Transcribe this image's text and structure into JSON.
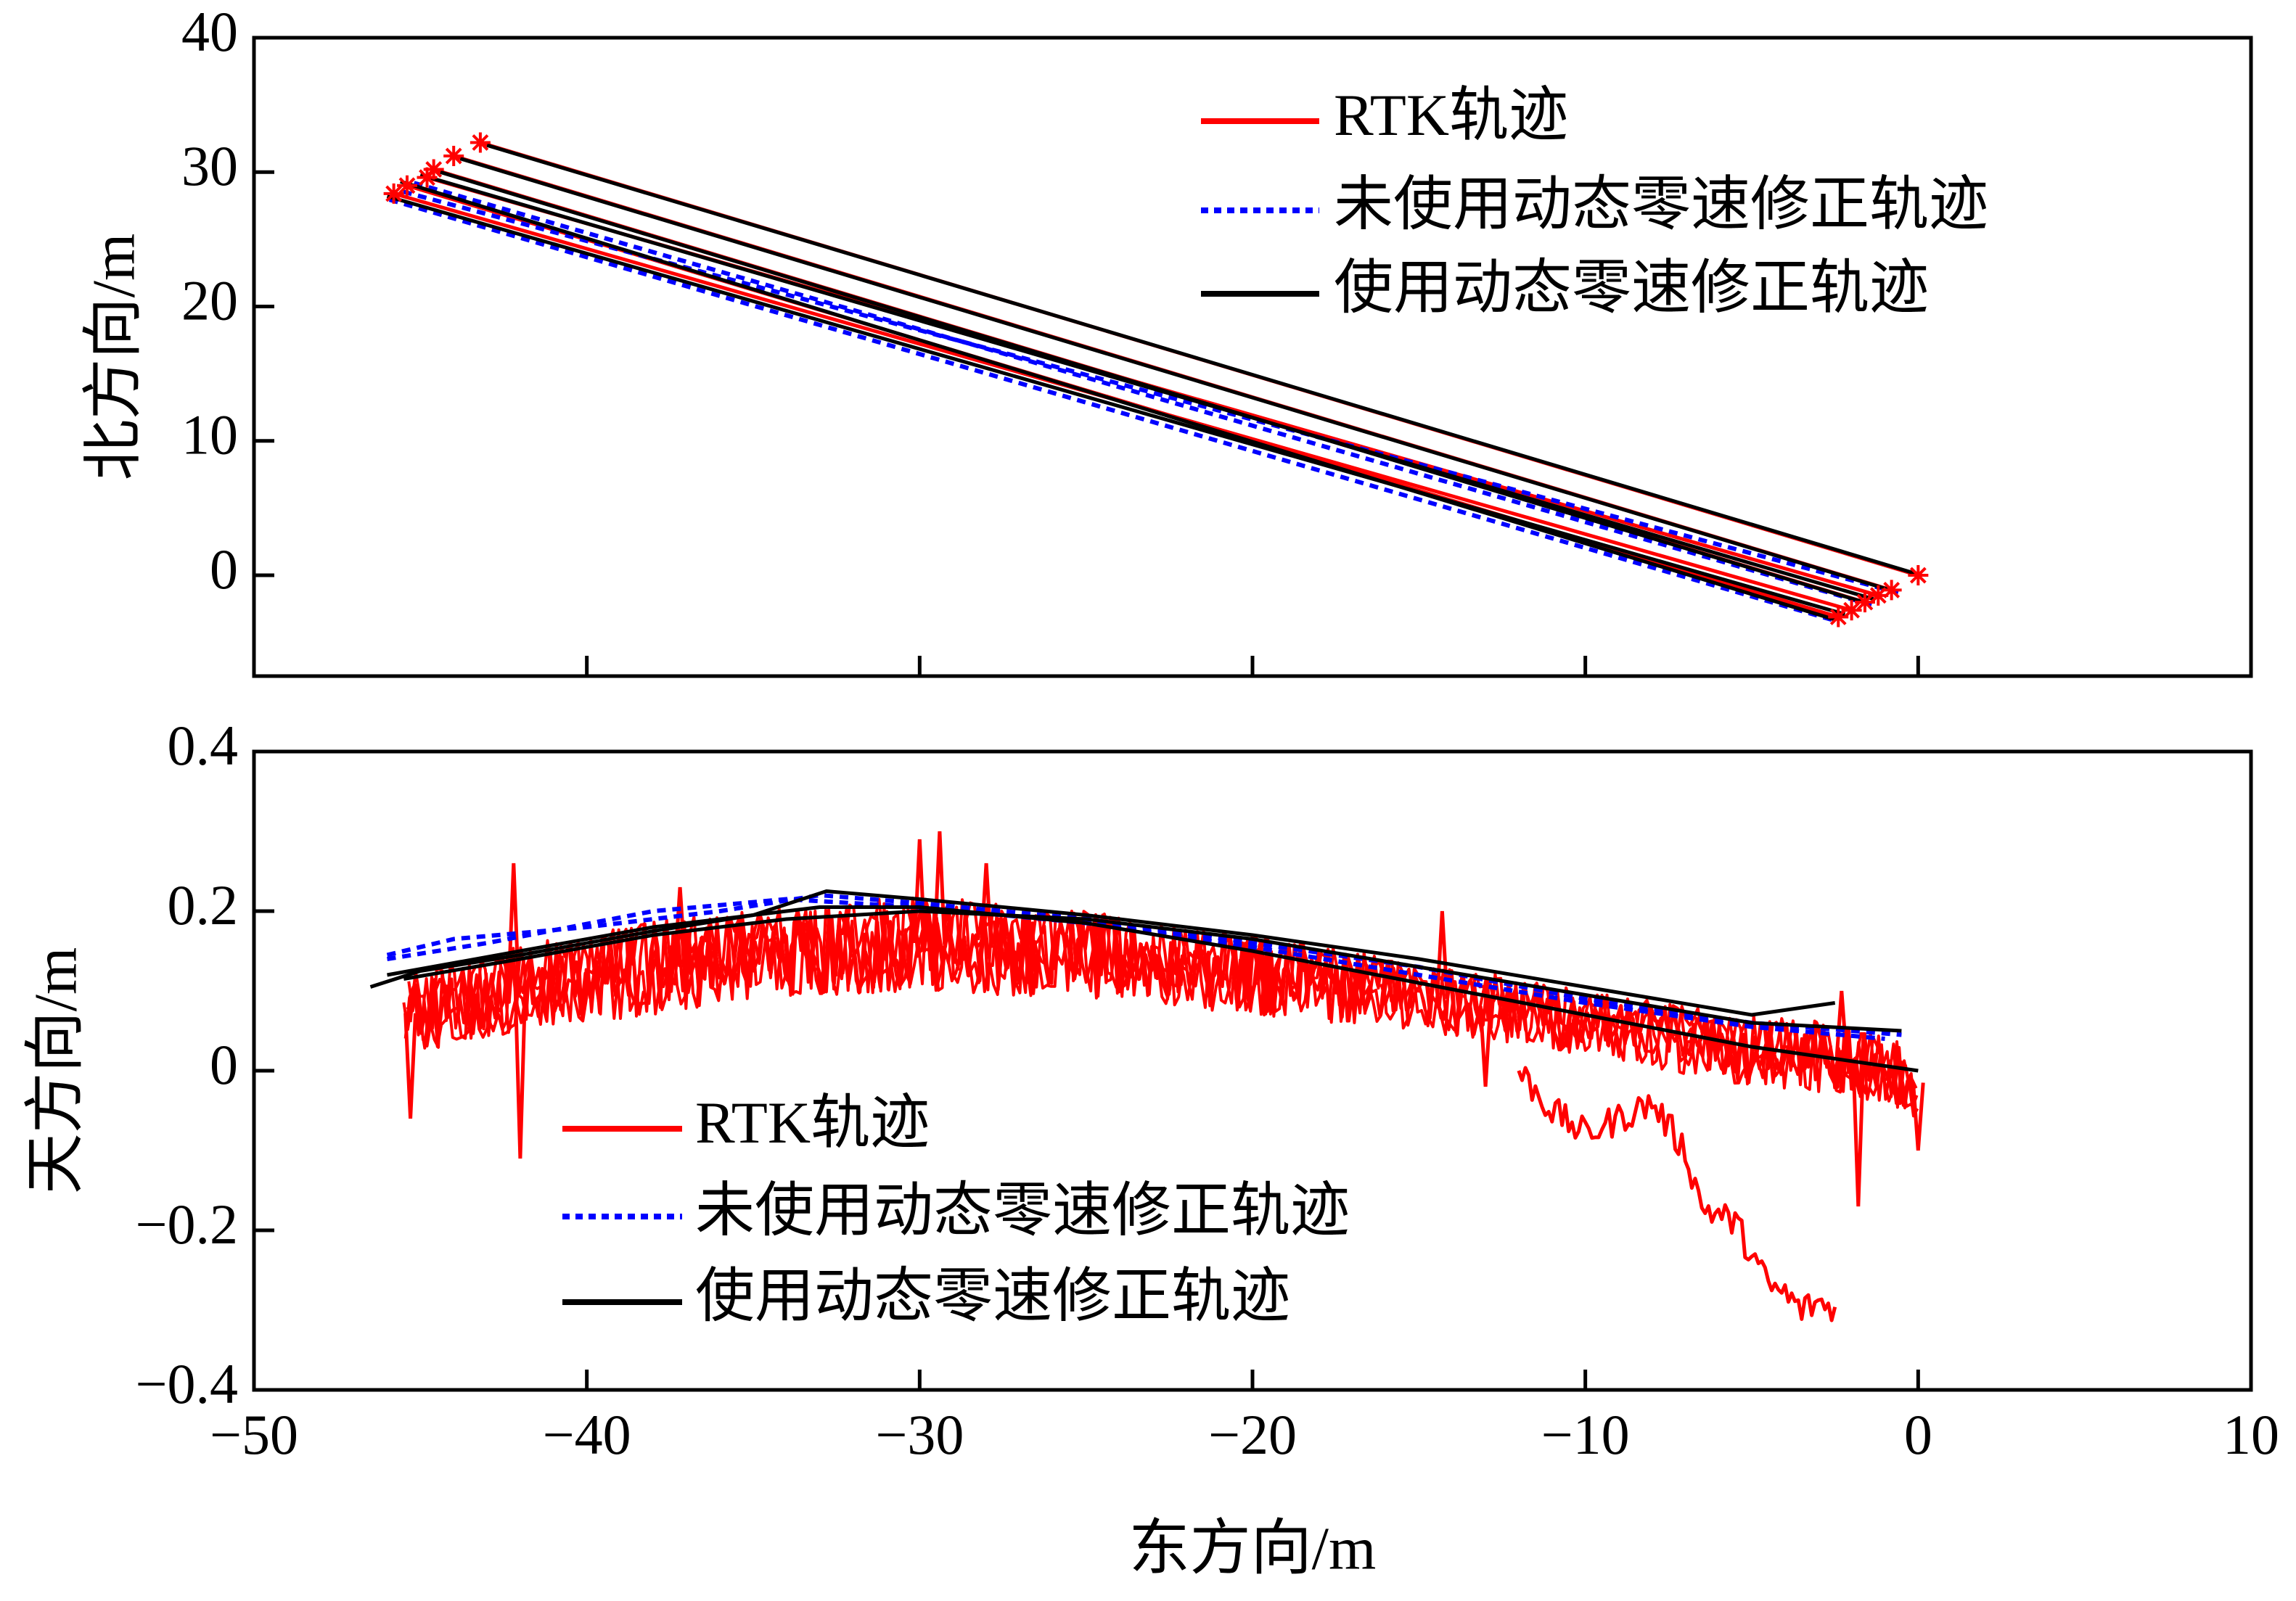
{
  "chart_data": [
    {
      "type": "line",
      "panel": "top",
      "xlabel": "东方向/m",
      "ylabel": "北方向/m",
      "xlim": [
        -50,
        10
      ],
      "ylim": [
        -7.5,
        40
      ],
      "yticks": [
        0,
        10,
        20,
        30,
        40
      ],
      "ytick_labels": [
        "0",
        "10",
        "20",
        "30",
        "40"
      ],
      "legend_position": "top-right",
      "legend": [
        "RTK轨迹",
        "未使用动态零速修正轨迹",
        "使用动态零速修正轨迹"
      ],
      "series": [
        {
          "name": "RTK轨迹",
          "color": "#ff0000",
          "style": "solid",
          "passes": [
            [
              [
                0,
                0
              ],
              [
                -43.2,
                32.2
              ]
            ],
            [
              [
                -0.8,
                -1.1
              ],
              [
                -44.0,
                31.2
              ]
            ],
            [
              [
                -1.6,
                -2.0
              ],
              [
                -44.6,
                30.2
              ]
            ],
            [
              [
                -2.4,
                -3.1
              ],
              [
                -45.4,
                29.0
              ]
            ],
            [
              [
                -1.2,
                -1.5
              ],
              [
                -44.8,
                29.6
              ]
            ],
            [
              [
                -2.0,
                -2.6
              ],
              [
                -45.8,
                28.4
              ]
            ]
          ]
        },
        {
          "name": "未使用动态零速修正轨迹",
          "color": "#0000ff",
          "style": "dotted",
          "passes": [
            [
              [
                -0.6,
                -1.3
              ],
              [
                -45.6,
                28.6
              ]
            ],
            [
              [
                -2.6,
                -3.3
              ],
              [
                -46.0,
                28.0
              ]
            ],
            [
              [
                -1.4,
                -2.2
              ],
              [
                -45.2,
                29.2
              ]
            ]
          ]
        },
        {
          "name": "使用动态零速修正轨迹",
          "color": "#000000",
          "style": "solid",
          "passes": [
            [
              [
                0.1,
                0.0
              ],
              [
                -43.0,
                32.0
              ]
            ],
            [
              [
                -0.7,
                -1.2
              ],
              [
                -43.8,
                31.0
              ]
            ],
            [
              [
                -1.5,
                -2.1
              ],
              [
                -44.4,
                30.0
              ]
            ],
            [
              [
                -2.5,
                -3.3
              ],
              [
                -45.6,
                29.3
              ]
            ],
            [
              [
                -1.3,
                -1.8
              ],
              [
                -45.0,
                29.8
              ]
            ],
            [
              [
                -2.2,
                -2.9
              ],
              [
                -46.0,
                28.2
              ]
            ]
          ]
        }
      ]
    },
    {
      "type": "line",
      "panel": "bottom",
      "xlabel": "东方向/m",
      "ylabel": "天方向/m",
      "xlim": [
        -50,
        10
      ],
      "ylim": [
        -0.4,
        0.4
      ],
      "xticks": [
        -50,
        -40,
        -30,
        -20,
        -10,
        0,
        10
      ],
      "xtick_labels": [
        "−50",
        "−40",
        "−30",
        "−20",
        "−10",
        "0",
        "10"
      ],
      "yticks": [
        -0.4,
        -0.2,
        0,
        0.2,
        0.4
      ],
      "ytick_labels": [
        "−0.4",
        "−0.2",
        "0",
        "0.2",
        "0.4"
      ],
      "legend_position": "bottom-left",
      "legend": [
        "RTK轨迹",
        "未使用动态零速修正轨迹",
        "使用动态零速修正轨迹"
      ],
      "series": [
        {
          "name": "RTK轨迹",
          "color": "#ff0000",
          "style": "solid",
          "note_shape": "noisy band",
          "envelope_upper": [
            [
              -45.5,
              0.12
            ],
            [
              -42,
              0.16
            ],
            [
              -38,
              0.19
            ],
            [
              -35,
              0.2
            ],
            [
              -30,
              0.22
            ],
            [
              -25,
              0.2
            ],
            [
              -20,
              0.17
            ],
            [
              -15,
              0.14
            ],
            [
              -10,
              0.1
            ],
            [
              -5,
              0.07
            ],
            [
              -2,
              0.06
            ],
            [
              0,
              0.03
            ]
          ],
          "envelope_lower": [
            [
              -45.5,
              0.02
            ],
            [
              -42,
              0.05
            ],
            [
              -38,
              0.07
            ],
            [
              -35,
              0.09
            ],
            [
              -30,
              0.1
            ],
            [
              -25,
              0.09
            ],
            [
              -20,
              0.07
            ],
            [
              -15,
              0.05
            ],
            [
              -10,
              0.02
            ],
            [
              -5,
              -0.02
            ],
            [
              -2,
              -0.03
            ],
            [
              0,
              -0.06
            ]
          ],
          "spikes": [
            [
              -45.3,
              -0.06
            ],
            [
              -42.2,
              0.26
            ],
            [
              -42.0,
              -0.11
            ],
            [
              -37.2,
              0.23
            ],
            [
              -30.0,
              0.29
            ],
            [
              -29.4,
              0.3
            ],
            [
              -28.0,
              0.26
            ],
            [
              -14.3,
              0.2
            ],
            [
              -13.0,
              -0.02
            ],
            [
              -2.3,
              0.1
            ],
            [
              -1.8,
              -0.17
            ],
            [
              0,
              -0.1
            ]
          ],
          "divergent_branch": [
            [
              -12,
              0.0
            ],
            [
              -11,
              -0.05
            ],
            [
              -10,
              -0.08
            ],
            [
              -9,
              -0.06
            ],
            [
              -8,
              -0.04
            ],
            [
              -7,
              -0.1
            ],
            [
              -6.5,
              -0.17
            ],
            [
              -5.5,
              -0.19
            ],
            [
              -5,
              -0.23
            ],
            [
              -4.5,
              -0.27
            ],
            [
              -4,
              -0.28
            ],
            [
              -3.5,
              -0.3
            ],
            [
              -3,
              -0.29
            ],
            [
              -2.5,
              -0.3
            ]
          ]
        },
        {
          "name": "未使用动态零速修正轨迹",
          "color": "#0000ff",
          "style": "dotted",
          "passes": [
            [
              [
                -46,
                0.145
              ],
              [
                -44,
                0.165
              ],
              [
                -40,
                0.18
              ],
              [
                -36,
                0.2
              ],
              [
                -33,
                0.22
              ],
              [
                -30,
                0.21
              ],
              [
                -25,
                0.19
              ],
              [
                -20,
                0.16
              ],
              [
                -15,
                0.13
              ],
              [
                -10,
                0.09
              ],
              [
                -5,
                0.06
              ],
              [
                -0.5,
                0.045
              ]
            ],
            [
              [
                -46,
                0.14
              ],
              [
                -43,
                0.16
              ],
              [
                -38,
                0.2
              ],
              [
                -34,
                0.215
              ],
              [
                -30,
                0.205
              ],
              [
                -25,
                0.185
              ],
              [
                -20,
                0.155
              ],
              [
                -15,
                0.12
              ],
              [
                -10,
                0.085
              ],
              [
                -5,
                0.055
              ],
              [
                -1,
                0.04
              ]
            ]
          ]
        },
        {
          "name": "使用动态零速修正轨迹",
          "color": "#000000",
          "style": "solid",
          "passes": [
            [
              [
                -46.5,
                0.105
              ],
              [
                -45,
                0.125
              ],
              [
                -42,
                0.145
              ],
              [
                -38,
                0.175
              ],
              [
                -35,
                0.195
              ],
              [
                -32.8,
                0.225
              ],
              [
                -30,
                0.215
              ],
              [
                -25,
                0.195
              ],
              [
                -20,
                0.17
              ],
              [
                -15,
                0.14
              ],
              [
                -10,
                0.105
              ],
              [
                -5,
                0.07
              ],
              [
                -2.5,
                0.085
              ]
            ],
            [
              [
                -45.5,
                0.115
              ],
              [
                -42,
                0.14
              ],
              [
                -38,
                0.17
              ],
              [
                -34,
                0.19
              ],
              [
                -30,
                0.2
              ],
              [
                -25,
                0.19
              ],
              [
                -20,
                0.165
              ],
              [
                -15,
                0.13
              ],
              [
                -10,
                0.095
              ],
              [
                -5,
                0.06
              ],
              [
                -0.5,
                0.05
              ]
            ],
            [
              [
                -46,
                0.12
              ],
              [
                -42,
                0.15
              ],
              [
                -38,
                0.18
              ],
              [
                -33,
                0.205
              ],
              [
                -30,
                0.205
              ],
              [
                -25,
                0.185
              ],
              [
                -20,
                0.15
              ],
              [
                -15,
                0.11
              ],
              [
                -10,
                0.07
              ],
              [
                -5,
                0.03
              ],
              [
                0,
                0.0
              ]
            ]
          ]
        }
      ]
    }
  ]
}
